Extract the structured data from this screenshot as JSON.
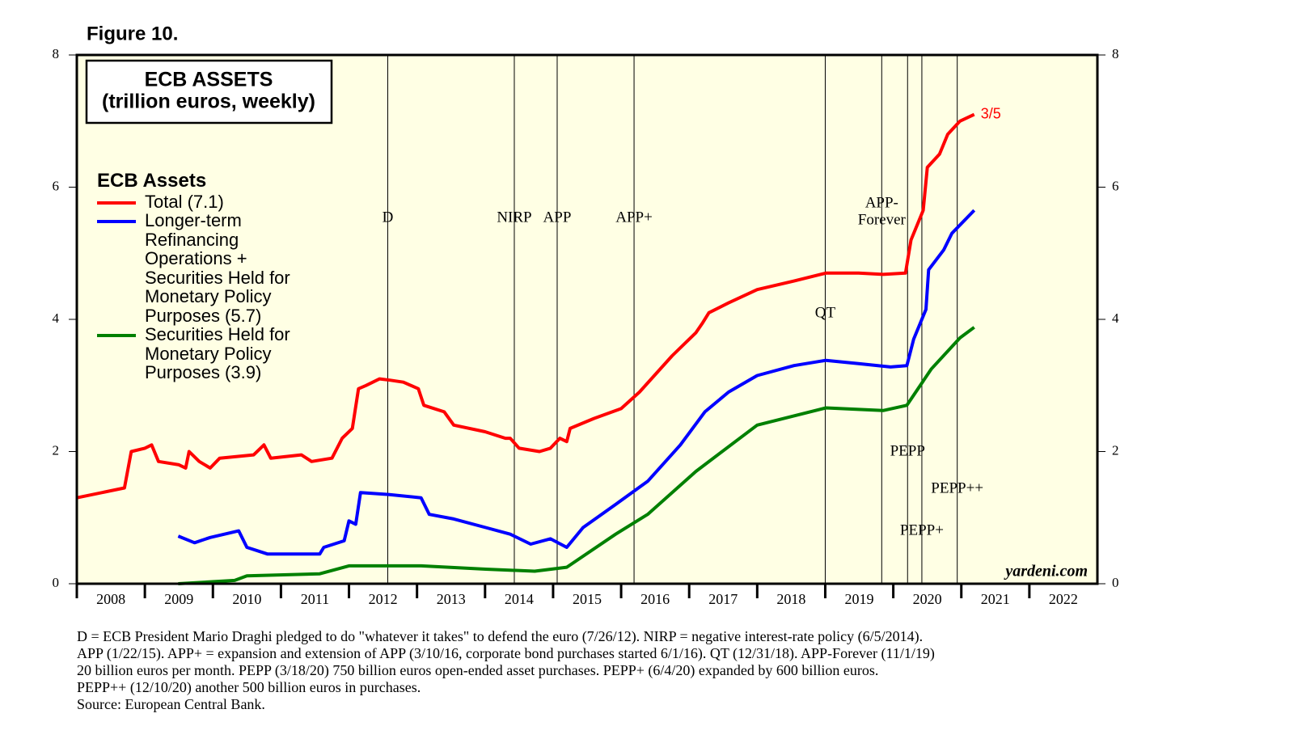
{
  "figure_label": "Figure 10.",
  "chart_data": {
    "type": "line",
    "title": "ECB ASSETS",
    "subtitle": "(trillion euros, weekly)",
    "legend_title": "ECB Assets",
    "legend_position": "upper left",
    "xlim": [
      2008,
      2023
    ],
    "xticks": [
      2008,
      2009,
      2010,
      2011,
      2012,
      2013,
      2014,
      2015,
      2016,
      2017,
      2018,
      2019,
      2020,
      2021,
      2022
    ],
    "ylim": [
      0,
      8
    ],
    "yticks": [
      0,
      2,
      4,
      6,
      8
    ],
    "background": "#ffffe4",
    "series": [
      {
        "name": "Total (7.1)",
        "color": "#ff0000",
        "x": [
          2008.0,
          2008.7,
          2008.8,
          2009.0,
          2009.1,
          2009.2,
          2009.5,
          2009.6,
          2009.65,
          2009.8,
          2009.96,
          2010.1,
          2010.6,
          2010.75,
          2010.85,
          2011.3,
          2011.45,
          2011.75,
          2011.9,
          2012.05,
          2012.14,
          2012.25,
          2012.45,
          2012.6,
          2012.8,
          2013.02,
          2013.1,
          2013.4,
          2013.54,
          2014.0,
          2014.3,
          2014.37,
          2014.5,
          2014.8,
          2014.96,
          2015.1,
          2015.2,
          2015.25,
          2015.6,
          2016.0,
          2016.27,
          2016.75,
          2017.1,
          2017.2,
          2017.29,
          2017.58,
          2018.0,
          2018.54,
          2019.01,
          2019.49,
          2019.85,
          2020.18,
          2020.26,
          2020.44,
          2020.5,
          2020.68,
          2020.8,
          2020.98,
          2021.19
        ],
        "values": [
          1.3,
          1.45,
          2.0,
          2.05,
          2.1,
          1.85,
          1.8,
          1.75,
          2.0,
          1.85,
          1.75,
          1.9,
          1.95,
          2.1,
          1.9,
          1.95,
          1.85,
          1.9,
          2.2,
          2.35,
          2.95,
          3.0,
          3.1,
          3.08,
          3.05,
          2.95,
          2.7,
          2.6,
          2.4,
          2.3,
          2.2,
          2.2,
          2.05,
          2.0,
          2.05,
          2.2,
          2.15,
          2.35,
          2.5,
          2.65,
          2.9,
          3.45,
          3.8,
          3.95,
          4.1,
          4.25,
          4.45,
          4.58,
          4.7,
          4.7,
          4.68,
          4.7,
          5.2,
          5.65,
          6.3,
          6.5,
          6.8,
          7.0,
          7.1
        ],
        "end_label": "3/5"
      },
      {
        "name": "Longer-term Refinancing Operations + Securities Held for Monetary Policy Purposes (5.7)",
        "color": "#0000ff",
        "x": [
          2009.49,
          2009.73,
          2009.96,
          2010.38,
          2010.5,
          2010.8,
          2011.15,
          2011.57,
          2011.63,
          2011.93,
          2012.0,
          2012.1,
          2012.17,
          2012.58,
          2013.06,
          2013.18,
          2013.54,
          2014.01,
          2014.37,
          2014.67,
          2014.96,
          2015.2,
          2015.44,
          2015.92,
          2016.39,
          2016.87,
          2017.23,
          2017.58,
          2018.0,
          2018.54,
          2019.01,
          2019.49,
          2019.96,
          2020.2,
          2020.3,
          2020.48,
          2020.52,
          2020.74,
          2020.86,
          2021.19
        ],
        "values": [
          0.72,
          0.62,
          0.7,
          0.8,
          0.55,
          0.45,
          0.45,
          0.45,
          0.55,
          0.65,
          0.95,
          0.9,
          1.38,
          1.35,
          1.3,
          1.05,
          0.98,
          0.85,
          0.75,
          0.6,
          0.68,
          0.55,
          0.85,
          1.2,
          1.55,
          2.1,
          2.6,
          2.9,
          3.15,
          3.3,
          3.38,
          3.33,
          3.28,
          3.3,
          3.7,
          4.15,
          4.75,
          5.05,
          5.3,
          5.65
        ]
      },
      {
        "name": "Securities Held for Monetary Policy Purposes (3.9)",
        "color": "#008000",
        "x": [
          2009.49,
          2010.32,
          2010.5,
          2011.57,
          2012.0,
          2013.06,
          2014.01,
          2014.73,
          2015.2,
          2015.92,
          2016.39,
          2017.1,
          2018.0,
          2019.01,
          2019.85,
          2020.2,
          2020.56,
          2020.98,
          2021.19
        ],
        "values": [
          0,
          0.05,
          0.12,
          0.15,
          0.27,
          0.27,
          0.22,
          0.19,
          0.25,
          0.75,
          1.05,
          1.7,
          2.4,
          2.66,
          2.62,
          2.7,
          3.25,
          3.72,
          3.88
        ]
      }
    ],
    "events": [
      {
        "x": 2012.57,
        "label": [
          "D"
        ]
      },
      {
        "x": 2014.43,
        "label": [
          "NIRP"
        ]
      },
      {
        "x": 2015.06,
        "label": [
          "APP"
        ]
      },
      {
        "x": 2016.19,
        "label": [
          "APP+"
        ]
      },
      {
        "x": 2019.0,
        "label": [
          "QT"
        ]
      },
      {
        "x": 2019.83,
        "label": [
          "APP-",
          "Forever"
        ]
      },
      {
        "x": 2020.21,
        "label": [
          "PEPP"
        ]
      },
      {
        "x": 2020.42,
        "label": [
          "PEPP+"
        ]
      },
      {
        "x": 2020.94,
        "label": [
          "PEPP++"
        ]
      }
    ],
    "watermark": "yardeni.com"
  },
  "footnote": [
    "D = ECB President Mario Draghi pledged to do \"whatever it takes\" to defend the euro (7/26/12). NIRP = negative interest-rate policy (6/5/2014).",
    "APP (1/22/15). APP+ = expansion and extension of APP (3/10/16, corporate bond purchases started 6/1/16). QT (12/31/18). APP-Forever (11/1/19)",
    "20 billion euros per month. PEPP (3/18/20) 750 billion euros open-ended asset purchases. PEPP+ (6/4/20) expanded by 600 billion euros.",
    "PEPP++ (12/10/20) another 500 billion euros in purchases.",
    "Source: European Central Bank."
  ]
}
